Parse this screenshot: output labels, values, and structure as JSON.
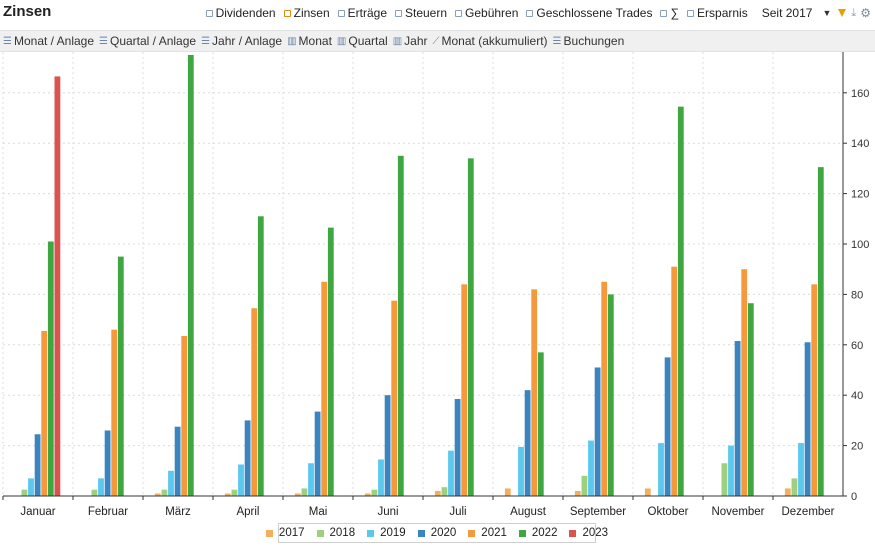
{
  "header": {
    "title": "Zinsen",
    "toggles": [
      {
        "label": "Dividenden",
        "active": false
      },
      {
        "label": "Zinsen",
        "active": true
      },
      {
        "label": "Erträge",
        "active": false
      },
      {
        "label": "Steuern",
        "active": false
      },
      {
        "label": "Gebühren",
        "active": false
      },
      {
        "label": "Geschlossene Trades",
        "active": false
      },
      {
        "label": "∑",
        "active": false
      },
      {
        "label": "Ersparnis",
        "active": false
      }
    ],
    "since_label": "Seit 2017"
  },
  "toolbar": {
    "items": [
      {
        "label": "Monat / Anlage",
        "icon": "list-icon"
      },
      {
        "label": "Quartal / Anlage",
        "icon": "list-icon"
      },
      {
        "label": "Jahr / Anlage",
        "icon": "list-icon"
      },
      {
        "label": "Monat",
        "icon": "bar-chart-icon"
      },
      {
        "label": "Quartal",
        "icon": "bar-chart-icon"
      },
      {
        "label": "Jahr",
        "icon": "bar-chart-icon"
      },
      {
        "label": "Monat (akkumuliert)",
        "icon": "line-chart-icon"
      },
      {
        "label": "Buchungen",
        "icon": "list-icon"
      }
    ]
  },
  "chart_data": {
    "type": "bar",
    "categories": [
      "Januar",
      "Februar",
      "März",
      "April",
      "Mai",
      "Juni",
      "Juli",
      "August",
      "September",
      "Oktober",
      "November",
      "Dezember"
    ],
    "ylim": [
      0,
      175
    ],
    "yticks": [
      0,
      20,
      40,
      60,
      80,
      100,
      120,
      140,
      160
    ],
    "y_axis_side": "right",
    "grid": true,
    "legend_position": "bottom",
    "series": [
      {
        "name": "2017",
        "color": "#f0b060",
        "values": [
          0,
          0,
          1,
          1,
          1,
          1,
          2,
          3,
          2,
          3,
          0,
          3
        ]
      },
      {
        "name": "2018",
        "color": "#9ed080",
        "values": [
          2.5,
          2.5,
          2.5,
          2.5,
          3,
          2.5,
          3.5,
          0,
          8,
          0,
          13,
          7
        ]
      },
      {
        "name": "2019",
        "color": "#5bc8ee",
        "values": [
          7,
          7,
          10,
          12.5,
          13,
          14.5,
          18,
          19.5,
          22,
          21,
          20,
          21
        ]
      },
      {
        "name": "2020",
        "color": "#3a84c0",
        "values": [
          24.5,
          26,
          27.5,
          30,
          33.5,
          40,
          38.5,
          42,
          51,
          55,
          61.5,
          61
        ]
      },
      {
        "name": "2021",
        "color": "#f49a3c",
        "values": [
          65.5,
          66,
          63.5,
          74.5,
          85,
          77.5,
          84,
          82,
          85,
          91,
          90,
          84
        ]
      },
      {
        "name": "2022",
        "color": "#3fa742",
        "values": [
          101,
          95,
          175,
          111,
          106.5,
          135,
          134,
          57,
          80,
          154.5,
          76.5,
          130.5
        ]
      },
      {
        "name": "2023",
        "color": "#d9534f",
        "values": [
          166.5,
          0,
          0,
          0,
          0,
          0,
          0,
          0,
          0,
          0,
          0,
          0
        ]
      }
    ]
  }
}
